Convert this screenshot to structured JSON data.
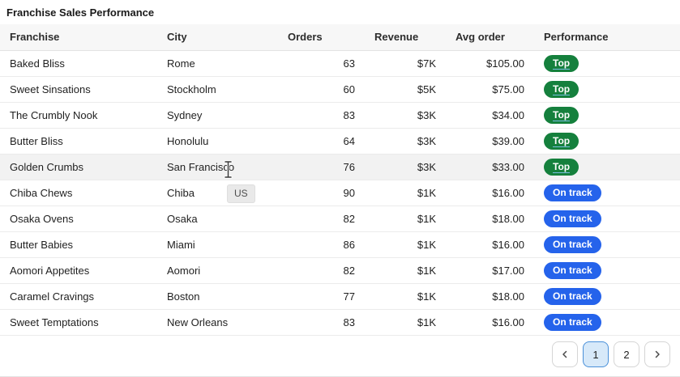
{
  "title": "Franchise Sales Performance",
  "colors": {
    "badge_top": "#15803d",
    "badge_on_track": "#2563eb",
    "active_page_bg": "#d7e9f9",
    "active_page_border": "#4a90d9",
    "header_bg": "#f7f7f7",
    "row_hover_bg": "#f2f2f2"
  },
  "table": {
    "columns": [
      "Franchise",
      "City",
      "Orders",
      "Revenue",
      "Avg order",
      "Performance"
    ],
    "rows": [
      {
        "franchise": "Baked Bliss",
        "city": "Rome",
        "orders": "63",
        "revenue": "$7K",
        "avg_order": "$105.00",
        "performance": "Top",
        "status": "top",
        "highlighted": false
      },
      {
        "franchise": "Sweet Sinsations",
        "city": "Stockholm",
        "orders": "60",
        "revenue": "$5K",
        "avg_order": "$75.00",
        "performance": "Top",
        "status": "top",
        "highlighted": false
      },
      {
        "franchise": "The Crumbly Nook",
        "city": "Sydney",
        "orders": "83",
        "revenue": "$3K",
        "avg_order": "$34.00",
        "performance": "Top",
        "status": "top",
        "highlighted": false
      },
      {
        "franchise": "Butter Bliss",
        "city": "Honolulu",
        "orders": "64",
        "revenue": "$3K",
        "avg_order": "$39.00",
        "performance": "Top",
        "status": "top",
        "highlighted": false
      },
      {
        "franchise": "Golden Crumbs",
        "city": "San Francisco",
        "orders": "76",
        "revenue": "$3K",
        "avg_order": "$33.00",
        "performance": "Top",
        "status": "top",
        "highlighted": true
      },
      {
        "franchise": "Chiba Chews",
        "city": "Chiba",
        "orders": "90",
        "revenue": "$1K",
        "avg_order": "$16.00",
        "performance": "On track",
        "status": "on-track",
        "highlighted": false
      },
      {
        "franchise": "Osaka Ovens",
        "city": "Osaka",
        "orders": "82",
        "revenue": "$1K",
        "avg_order": "$18.00",
        "performance": "On track",
        "status": "on-track",
        "highlighted": false
      },
      {
        "franchise": "Butter Babies",
        "city": "Miami",
        "orders": "86",
        "revenue": "$1K",
        "avg_order": "$16.00",
        "performance": "On track",
        "status": "on-track",
        "highlighted": false
      },
      {
        "franchise": "Aomori Appetites",
        "city": "Aomori",
        "orders": "82",
        "revenue": "$1K",
        "avg_order": "$17.00",
        "performance": "On track",
        "status": "on-track",
        "highlighted": false
      },
      {
        "franchise": "Caramel Cravings",
        "city": "Boston",
        "orders": "77",
        "revenue": "$1K",
        "avg_order": "$18.00",
        "performance": "On track",
        "status": "on-track",
        "highlighted": false
      },
      {
        "franchise": "Sweet Temptations",
        "city": "New Orleans",
        "orders": "83",
        "revenue": "$1K",
        "avg_order": "$16.00",
        "performance": "On track",
        "status": "on-track",
        "highlighted": false
      }
    ]
  },
  "tooltip": {
    "text": "US"
  },
  "pagination": {
    "prev_icon": "chevron-left",
    "next_icon": "chevron-right",
    "pages": [
      {
        "label": "1",
        "active": true
      },
      {
        "label": "2",
        "active": false
      }
    ]
  }
}
